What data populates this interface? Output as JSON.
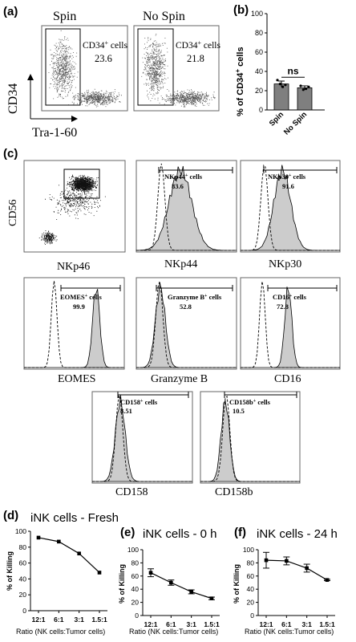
{
  "panel_labels": [
    "(a)",
    "(b)",
    "(c)",
    "(d)",
    "(e)",
    "(f)"
  ],
  "panel_a": {
    "conditions": [
      "Spin",
      "No Spin"
    ],
    "gate_label_main": "CD34",
    "gate_label_sup": "+",
    "gate_label_tail": " cells",
    "values": [
      "23.6",
      "21.8"
    ],
    "y_axis": "CD34",
    "x_axis": "Tra-1-60"
  },
  "histogram_gate_texts": {
    "nkp44": {
      "main": "NKp44",
      "sup": "+",
      "tail": " cells",
      "value": "83.6"
    },
    "nkp30": {
      "main": "NKp30",
      "sup": "+",
      "tail": " cells",
      "value": "91.6"
    },
    "eomes": {
      "main": "EOMES",
      "sup": "+",
      "tail": " cells",
      "value": "99.9"
    },
    "granzyme": {
      "main": "Granzyme B",
      "sup": "+",
      "tail": " cells",
      "value": "52.8"
    },
    "cd16": {
      "main": "CD16",
      "sup": "+",
      "tail": " cells",
      "value": "72.8"
    },
    "cd158": {
      "main": "CD158",
      "sup": "+",
      "tail": " cells",
      "value": "8.51"
    },
    "cd158b": {
      "main": "CD158b",
      "sup": "+",
      "tail": " cells",
      "value": "10.5"
    }
  },
  "marker_axis_labels": {
    "cd56": "CD56",
    "nkp46": "NKp46",
    "nkp44": "NKp44",
    "nkp30": "NKp30",
    "eomes": "EOMES",
    "granzyme": "Granzyme B",
    "cd16": "CD16",
    "cd158": "CD158",
    "cd158b": "CD158b"
  },
  "colors": {
    "bar_fill": "#7f7f7f",
    "histogram_fill": "#cccccc",
    "line": "#000000"
  },
  "chart_data": [
    {
      "id": "b",
      "type": "bar",
      "categories": [
        "Spin",
        "No Spin"
      ],
      "values": [
        27,
        23
      ],
      "errors": [
        3,
        2
      ],
      "points": [
        [
          31,
          27,
          24,
          26
        ],
        [
          25,
          21,
          22,
          24
        ]
      ],
      "ylabel": "% of CD34",
      "ylabel_sup": "+",
      "ylabel_tail": " cells",
      "ylim": [
        0,
        100
      ],
      "yticks": [
        0,
        20,
        40,
        60,
        80,
        100
      ],
      "annotation": "ns"
    },
    {
      "id": "d",
      "type": "line",
      "title": "iNK cells - Fresh",
      "categories": [
        "12:1",
        "6:1",
        "3:1",
        "1.5:1"
      ],
      "values": [
        92,
        87,
        72,
        48
      ],
      "errors": [
        0,
        0,
        0,
        0
      ],
      "xlabel": "Ratio (NK cells:Tumor cells)",
      "ylabel": "% of Killing",
      "ylim": [
        0,
        100
      ],
      "yticks": [
        0,
        20,
        40,
        60,
        80,
        100
      ]
    },
    {
      "id": "e",
      "type": "line",
      "title": "iNK cells - 0 h",
      "categories": [
        "12:1",
        "6:1",
        "3:1",
        "1.5:1"
      ],
      "values": [
        65,
        50,
        36,
        26
      ],
      "errors": [
        6,
        4,
        3,
        2
      ],
      "xlabel": "Ratio (NK cells:Tumor cells)",
      "ylabel": "% of Killing",
      "ylim": [
        0,
        100
      ],
      "yticks": [
        0,
        20,
        40,
        60,
        80,
        100
      ]
    },
    {
      "id": "f",
      "type": "line",
      "title": "iNK cells - 24 h",
      "categories": [
        "12:1",
        "6:1",
        "3:1",
        "1.5:1"
      ],
      "values": [
        84,
        83,
        72,
        54
      ],
      "errors": [
        12,
        6,
        6,
        1
      ],
      "xlabel": "Ratio (NK cells:Tumor cells)",
      "ylabel": "% of Killing",
      "ylim": [
        0,
        100
      ],
      "yticks": [
        0,
        20,
        40,
        60,
        80,
        100
      ]
    }
  ]
}
